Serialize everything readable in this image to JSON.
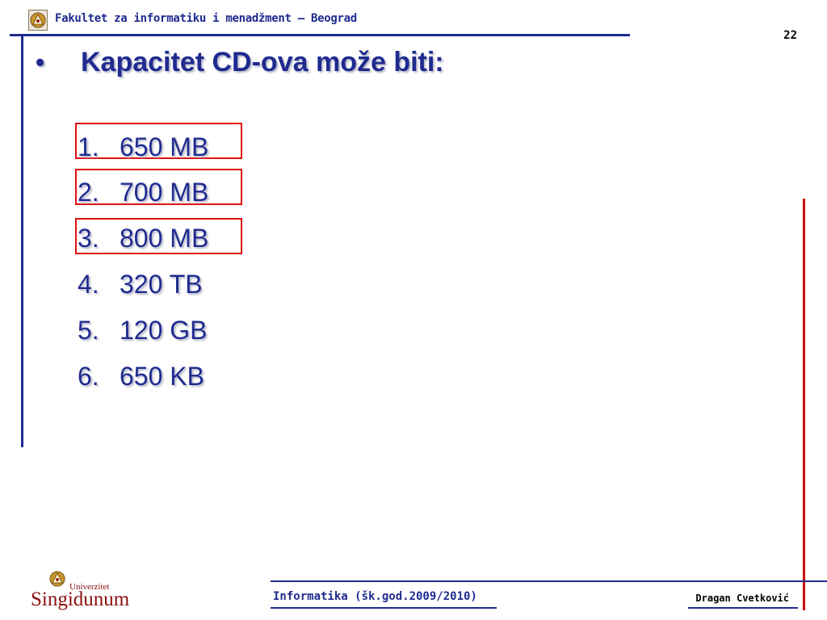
{
  "header": {
    "faculty": "Fakultet za informatiku i menadžment – Beograd",
    "page_number": "22"
  },
  "slide": {
    "bullet": "•",
    "title": "Kapacitet CD-ova može biti:",
    "options": [
      {
        "num": "1.",
        "text": "650 MB",
        "highlighted": true
      },
      {
        "num": "2.",
        "text": "700 MB",
        "highlighted": true
      },
      {
        "num": "3.",
        "text": "800 MB",
        "highlighted": true
      },
      {
        "num": "4.",
        "text": "320 TB",
        "highlighted": false
      },
      {
        "num": "5.",
        "text": "120 GB",
        "highlighted": false
      },
      {
        "num": "6.",
        "text": "650 KB",
        "highlighted": false
      }
    ]
  },
  "footer": {
    "logo_word": "Singidunum",
    "logo_sub": "Univerzitet",
    "course": "Informatika (šk.god.2009/2010)",
    "author": "Dragan Cvetković"
  },
  "colors": {
    "primary": "#1f2b8f",
    "highlight": "#dd1111",
    "accent_rule": "#cc1111"
  }
}
